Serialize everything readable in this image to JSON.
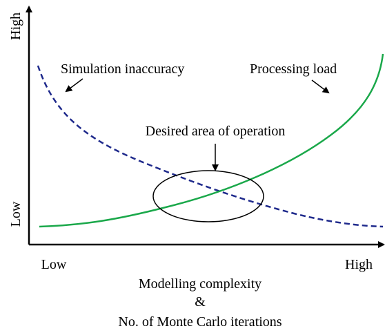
{
  "axes": {
    "y_high": "High",
    "y_low": "Low",
    "x_low": "Low",
    "x_high": "High"
  },
  "x_title": [
    "Modelling complexity",
    "&",
    "No. of Monte Carlo iterations"
  ],
  "curves": {
    "dashed": "Simulation inaccuracy",
    "solid": "Processing load"
  },
  "region": "Desired area of operation"
}
